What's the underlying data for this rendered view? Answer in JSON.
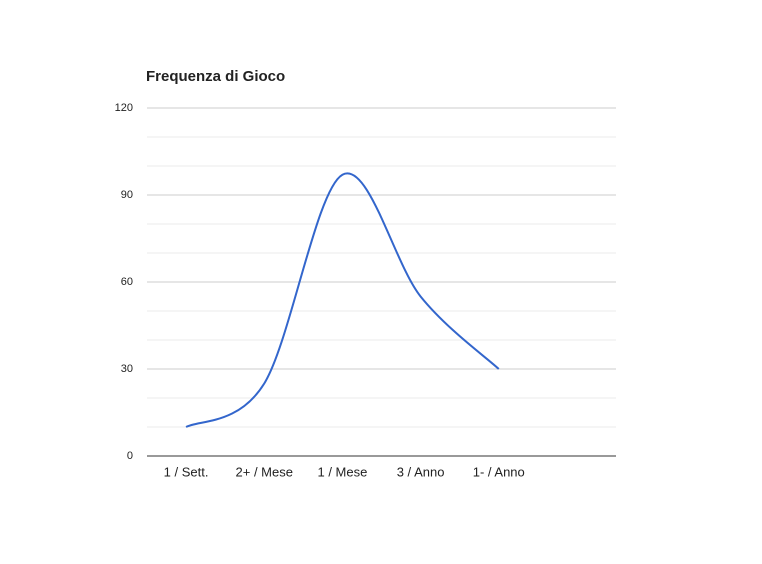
{
  "chart_data": {
    "type": "line",
    "title": "Frequenza di Gioco",
    "categories": [
      "1 / Sett.",
      "2+ / Mese",
      "1 / Mese",
      "3 / Anno",
      "1- / Anno",
      null
    ],
    "series": [
      {
        "name": "Frequenza di Gioco",
        "color": "#3366cc",
        "values": [
          10,
          25,
          97,
          55,
          30,
          null
        ]
      }
    ],
    "ylim": [
      0,
      120
    ],
    "yticks": [
      0,
      30,
      60,
      90,
      120
    ],
    "minor_yticks": [
      10,
      20,
      40,
      50,
      70,
      80,
      100,
      110
    ],
    "grid": true,
    "smooth": true,
    "legend": "none"
  }
}
